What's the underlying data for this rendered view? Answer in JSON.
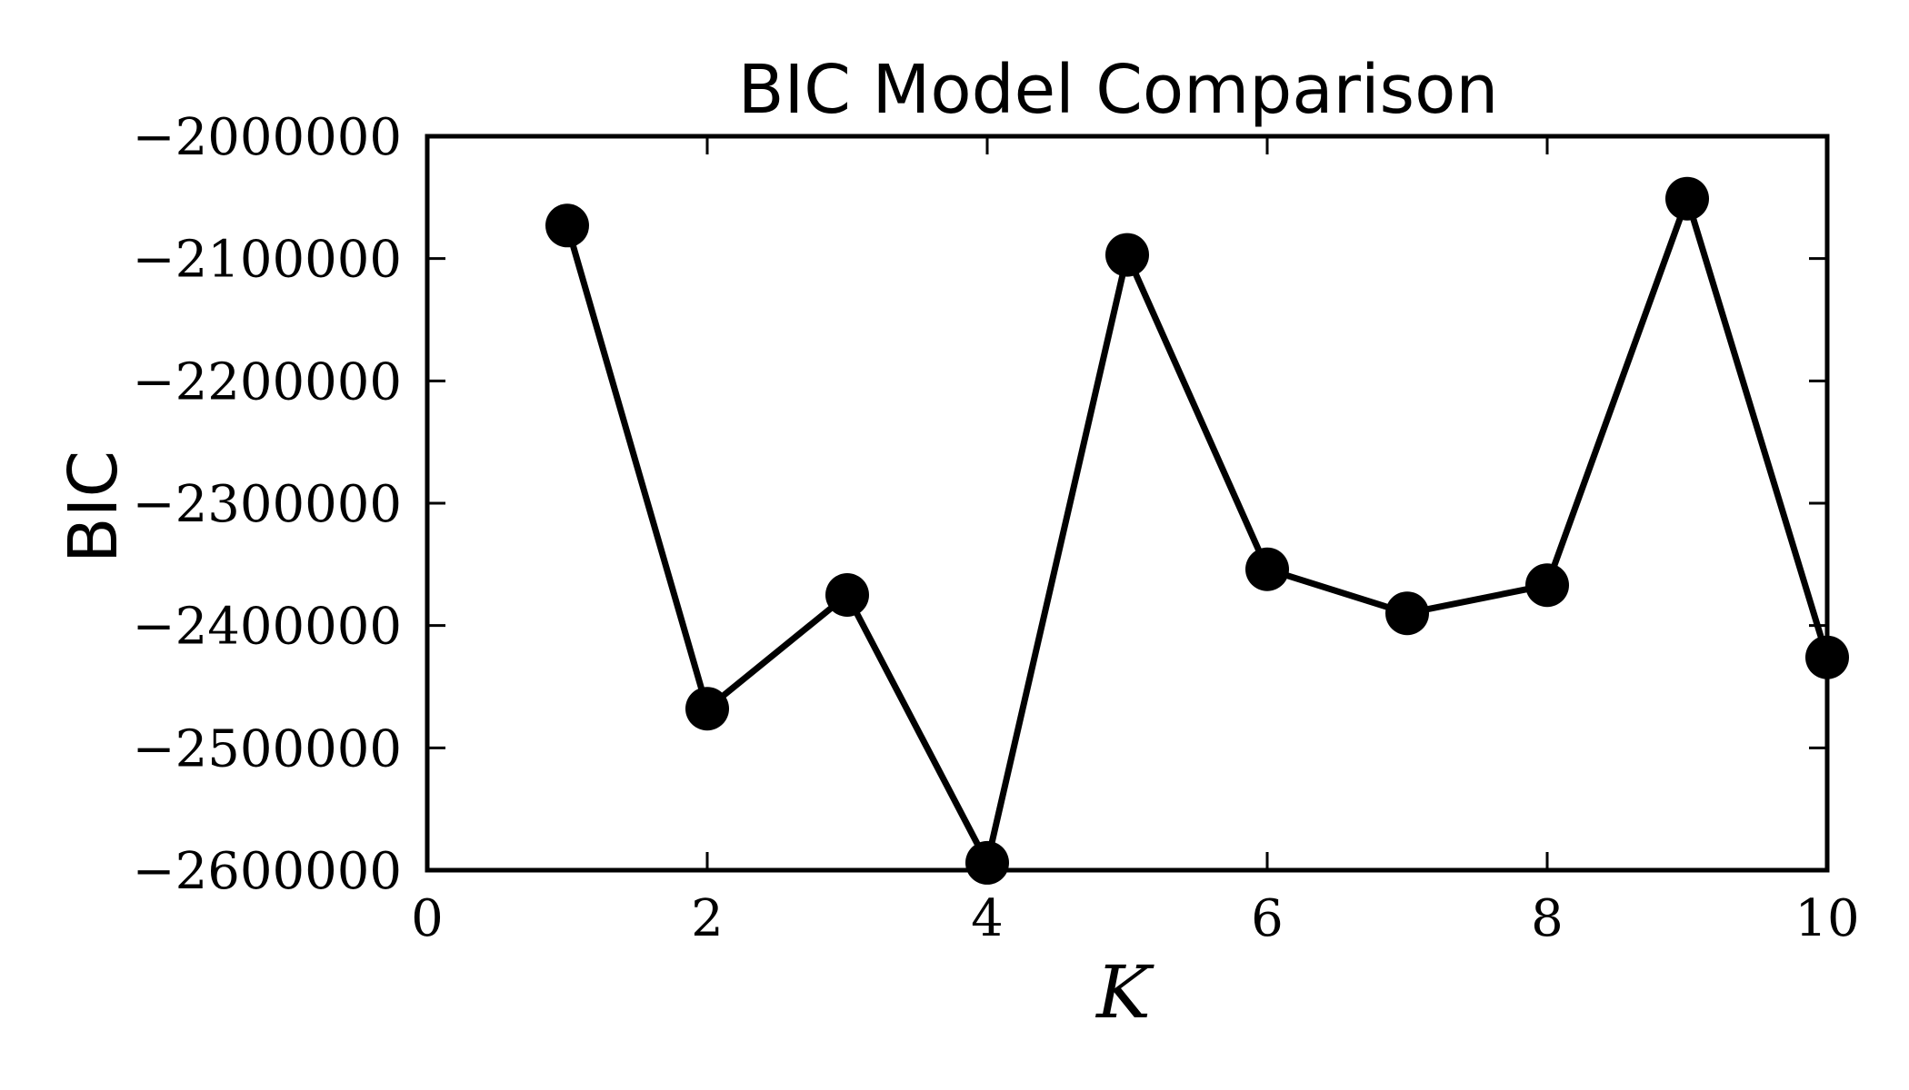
{
  "chart_data": {
    "type": "line",
    "title": "BIC Model Comparison",
    "xlabel": "K",
    "ylabel": "BIC",
    "xlim": [
      0,
      10
    ],
    "ylim": [
      -2600000,
      -2000000
    ],
    "x_ticks": [
      0,
      2,
      4,
      6,
      8,
      10
    ],
    "y_ticks": [
      -2000000,
      -2100000,
      -2200000,
      -2300000,
      -2400000,
      -2500000,
      -2600000
    ],
    "x_tick_labels": [
      "0",
      "2",
      "4",
      "6",
      "8",
      "10"
    ],
    "y_tick_labels": [
      "−2000000",
      "−2100000",
      "−2200000",
      "−2300000",
      "−2400000",
      "−2500000",
      "−2600000"
    ],
    "x": [
      1,
      2,
      3,
      4,
      5,
      6,
      7,
      8,
      9,
      10
    ],
    "y": [
      -2073000,
      -2468000,
      -2375000,
      -2594000,
      -2097000,
      -2354000,
      -2390000,
      -2367000,
      -2051000,
      -2426000
    ],
    "line_color": "#000000",
    "marker_color": "#000000",
    "grid": false,
    "marker": "circle"
  }
}
